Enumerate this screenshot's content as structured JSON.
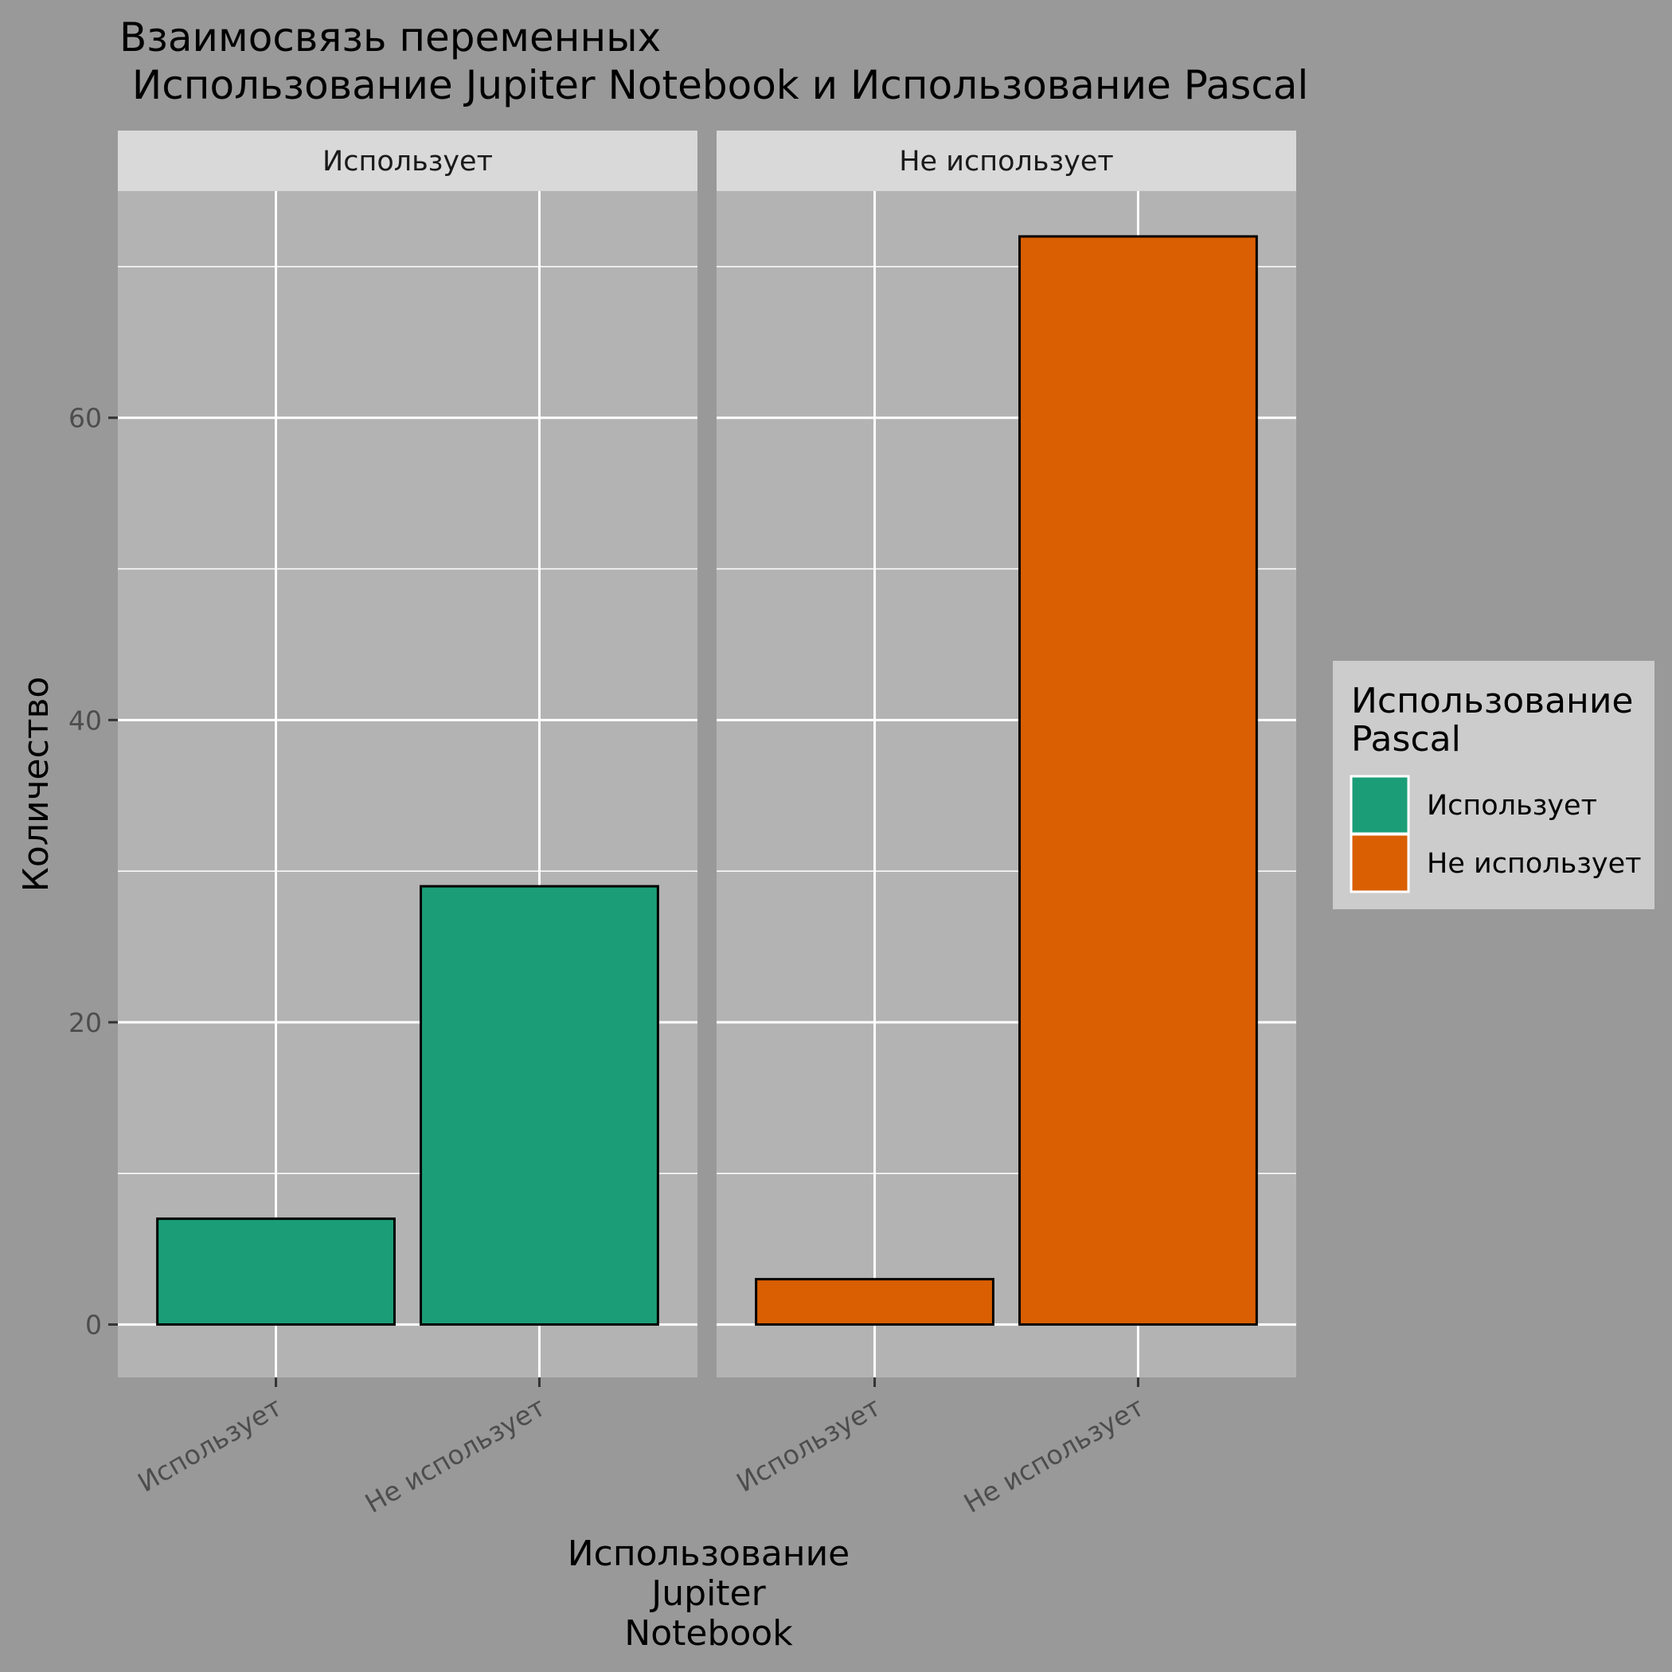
{
  "chart_data": {
    "type": "bar",
    "title_lines": [
      "Взаимосвязь переменных",
      " Использование Jupiter Notebook и Использование Pascal"
    ],
    "xlabel_lines": [
      "Использование",
      "Jupiter",
      "Notebook"
    ],
    "ylabel": "Количество",
    "facet_label": "Использование Pascal",
    "categories": [
      "Использует",
      "Не использует"
    ],
    "ylim": [
      -3.5,
      75
    ],
    "y_ticks": [
      0,
      20,
      40,
      60
    ],
    "grid": true,
    "legend": {
      "title_lines": [
        "Использование",
        "Pascal"
      ],
      "placement": "right",
      "items": [
        "Использует",
        "Не использует"
      ]
    },
    "colors": {
      "Использует": "#1B9E77",
      "Не использует": "#D95F02"
    },
    "facets": [
      {
        "label": "Использует",
        "fill_key": "Использует",
        "values": [
          7,
          29
        ]
      },
      {
        "label": "Не использует",
        "fill_key": "Не использует",
        "values": [
          3,
          72
        ]
      }
    ]
  }
}
